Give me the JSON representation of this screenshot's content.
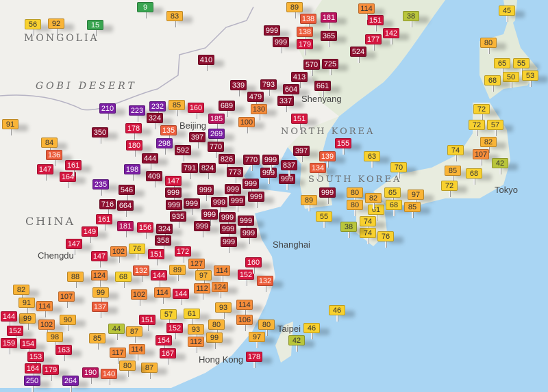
{
  "map": {
    "land_color": "#f1f0ec",
    "sea_color": "#a9d5f3",
    "regions": {
      "mongolia": "MONGOLIA",
      "gobi": "GOBI DESERT",
      "china": "CHINA",
      "north_korea": "NORTH KOREA",
      "south_korea": "SOUTH KOREA"
    },
    "cities": {
      "beijing": "Beijing",
      "shenyang": "Shenyang",
      "shanghai": "Shanghai",
      "hong_kong": "Hong Kong",
      "tokyo": "Tokyo",
      "chengdu": "Chengdu",
      "taipei": "Taipei"
    }
  },
  "aqi_scale": [
    {
      "max": 20,
      "color": "#3aa551",
      "text": "#ffffff"
    },
    {
      "max": 44,
      "color": "#b9c53b",
      "text": "#333333"
    },
    {
      "max": 79,
      "color": "#f8d12f",
      "text": "#333333"
    },
    {
      "max": 99,
      "color": "#f9b437",
      "text": "#333333"
    },
    {
      "max": 130,
      "color": "#f68c3a",
      "text": "#333333"
    },
    {
      "max": 140,
      "color": "#ec5d3b",
      "text": "#ffffff"
    },
    {
      "max": 180,
      "color": "#d4163f",
      "text": "#ffffff"
    },
    {
      "max": 195,
      "color": "#b8145d",
      "text": "#ffffff"
    },
    {
      "max": 300,
      "color": "#7a1fa3",
      "text": "#ffffff"
    },
    {
      "max": 1000,
      "color": "#8c0f2f",
      "text": "#ffffff"
    }
  ],
  "markers": [
    56,
    92,
    15,
    9,
    83,
    410,
    339,
    479,
    793,
    689,
    130,
    210,
    223,
    232,
    85,
    324,
    160,
    185,
    135,
    100,
    298,
    269,
    397,
    350,
    178,
    180,
    770,
    592,
    444,
    826,
    770,
    824,
    791,
    773,
    198,
    409,
    147,
    235,
    546,
    91,
    84,
    136,
    147,
    164,
    161,
    89,
    138,
    181,
    138,
    999,
    999,
    365,
    179,
    151,
    177,
    142,
    114,
    38,
    524,
    570,
    725,
    413,
    604,
    661,
    337,
    151,
    45,
    80,
    65,
    55,
    50,
    53,
    68,
    72,
    72,
    82,
    57,
    155,
    139,
    134,
    397,
    63,
    70,
    74,
    107,
    42,
    85,
    68,
    80,
    80,
    999,
    65,
    72,
    97,
    999,
    999,
    999,
    999,
    999,
    999,
    999,
    999,
    999,
    999,
    999,
    999,
    999,
    999,
    999,
    837,
    716,
    664,
    161,
    149,
    181,
    156,
    935,
    999,
    999,
    324,
    358,
    999,
    999,
    147,
    147,
    102,
    76,
    151,
    172,
    124,
    88,
    132,
    144,
    89,
    127,
    97,
    114,
    112,
    124,
    152,
    160,
    132,
    68,
    82,
    107,
    91,
    114,
    99,
    99,
    137,
    102,
    114,
    144,
    93,
    114,
    90,
    144,
    152,
    159,
    102,
    98,
    154,
    151,
    57,
    61,
    106,
    80,
    80,
    44,
    87,
    152,
    93,
    99,
    97,
    85,
    163,
    154,
    112,
    167,
    117,
    114,
    153,
    164,
    179,
    250,
    264,
    190,
    140,
    178,
    87,
    80,
    89,
    55,
    61,
    74,
    74,
    76,
    38,
    46,
    46,
    42,
    82,
    68,
    85
  ]
}
